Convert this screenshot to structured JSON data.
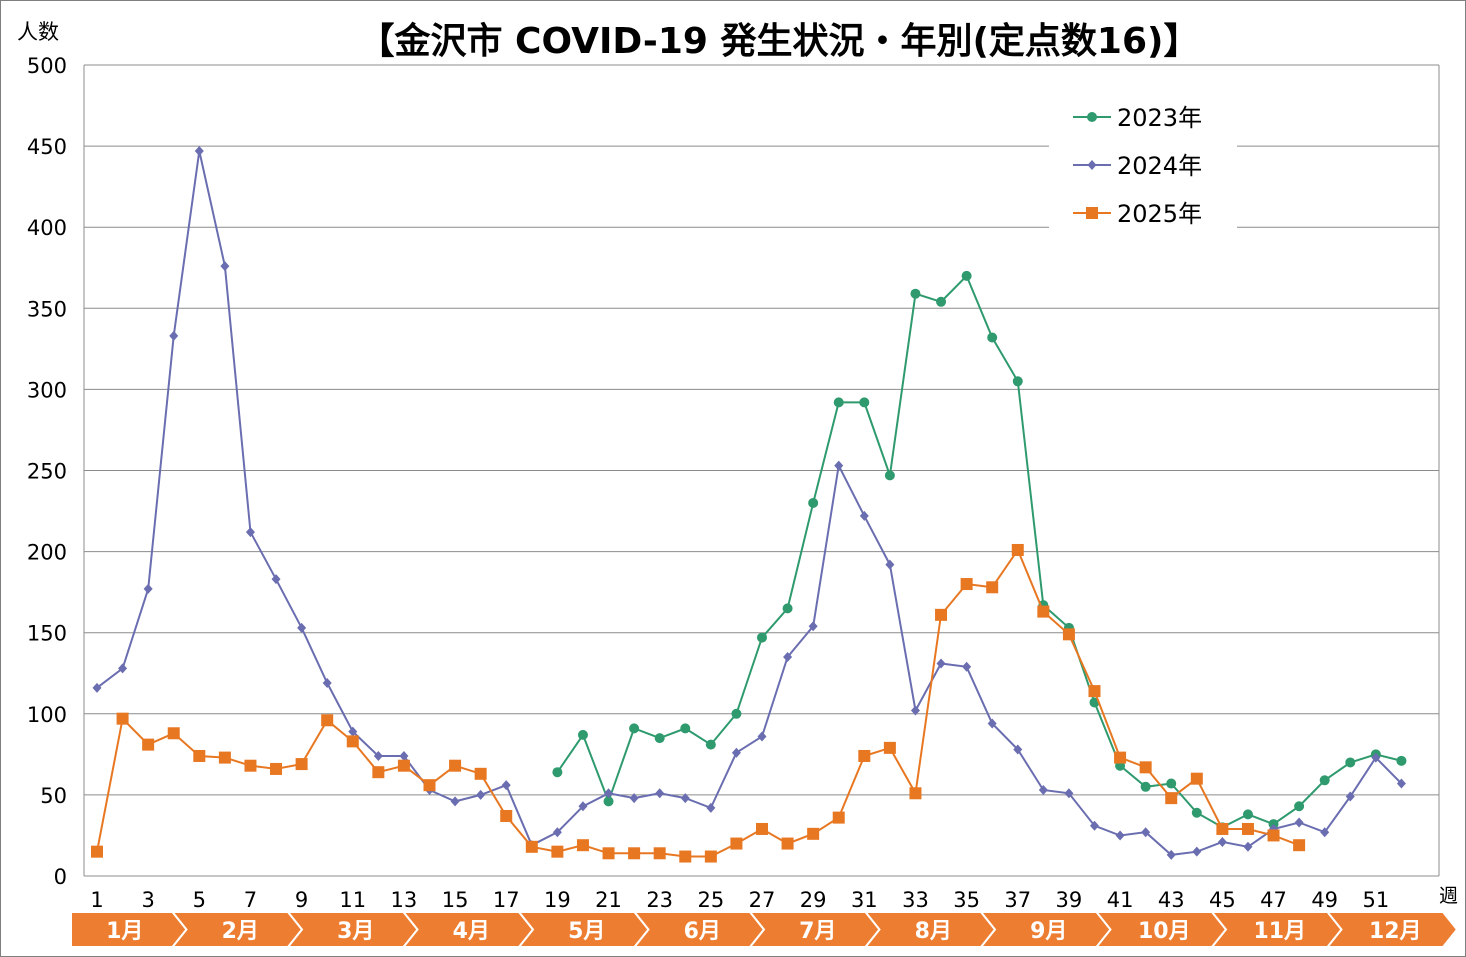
{
  "chart_data": {
    "type": "line",
    "title": "【金沢市 COVID-19 発生状況・年別(定点数16)】",
    "ylabel": "人数",
    "xlabel": "週",
    "ylim": [
      0,
      500
    ],
    "yticks": [
      0,
      50,
      100,
      150,
      200,
      250,
      300,
      350,
      400,
      450,
      500
    ],
    "xlim": [
      1,
      53
    ],
    "xtick_labels": [
      "1",
      "3",
      "5",
      "7",
      "9",
      "11",
      "13",
      "15",
      "17",
      "19",
      "21",
      "23",
      "25",
      "27",
      "29",
      "31",
      "33",
      "35",
      "37",
      "39",
      "41",
      "43",
      "45",
      "47",
      "49",
      "51"
    ],
    "grid": "horizontal",
    "legend_position": "top-right",
    "months": [
      "1月",
      "2月",
      "3月",
      "4月",
      "5月",
      "6月",
      "7月",
      "8月",
      "9月",
      "10月",
      "11月",
      "12月"
    ],
    "series": [
      {
        "name": "2023年",
        "color": "#2e9a6e",
        "marker": "circle",
        "x": [
          19,
          20,
          21,
          22,
          23,
          24,
          25,
          26,
          27,
          28,
          29,
          30,
          31,
          32,
          33,
          34,
          35,
          36,
          37,
          38,
          39,
          40,
          41,
          42,
          43,
          44,
          45,
          46,
          47,
          48,
          49,
          50,
          51,
          52
        ],
        "values": [
          64,
          87,
          46,
          91,
          85,
          91,
          81,
          100,
          147,
          165,
          230,
          292,
          292,
          247,
          359,
          354,
          370,
          332,
          305,
          167,
          153,
          107,
          68,
          55,
          57,
          39,
          30,
          38,
          32,
          43,
          59,
          70,
          75,
          71
        ]
      },
      {
        "name": "2024年",
        "color": "#6a6eb0",
        "marker": "diamond",
        "x": [
          1,
          2,
          3,
          4,
          5,
          6,
          7,
          8,
          9,
          10,
          11,
          12,
          13,
          14,
          15,
          16,
          17,
          18,
          19,
          20,
          21,
          22,
          23,
          24,
          25,
          26,
          27,
          28,
          29,
          30,
          31,
          32,
          33,
          34,
          35,
          36,
          37,
          38,
          39,
          40,
          41,
          42,
          43,
          44,
          45,
          46,
          47,
          48,
          49,
          50,
          51,
          52
        ],
        "values": [
          116,
          128,
          177,
          333,
          447,
          376,
          212,
          183,
          153,
          119,
          89,
          74,
          74,
          53,
          46,
          50,
          56,
          19,
          27,
          43,
          51,
          48,
          51,
          48,
          42,
          76,
          86,
          135,
          154,
          253,
          222,
          192,
          102,
          131,
          129,
          94,
          78,
          53,
          51,
          31,
          25,
          27,
          13,
          15,
          21,
          18,
          29,
          33,
          27,
          49,
          73,
          57
        ]
      },
      {
        "name": "2025年",
        "color": "#e87722",
        "marker": "square",
        "x": [
          1,
          2,
          3,
          4,
          5,
          6,
          7,
          8,
          9,
          10,
          11,
          12,
          13,
          14,
          15,
          16,
          17,
          18,
          19,
          20,
          21,
          22,
          23,
          24,
          25,
          26,
          27,
          28,
          29,
          30,
          31,
          32,
          33,
          34,
          35,
          36,
          37,
          38,
          39,
          40,
          41,
          42,
          43,
          44,
          45,
          46,
          47,
          48
        ],
        "values": [
          15,
          97,
          81,
          88,
          74,
          73,
          68,
          66,
          69,
          96,
          83,
          64,
          68,
          56,
          68,
          63,
          37,
          18,
          15,
          19,
          14,
          14,
          14,
          12,
          12,
          20,
          29,
          20,
          26,
          36,
          74,
          79,
          51,
          161,
          180,
          178,
          201,
          163,
          149,
          114,
          73,
          67,
          48,
          60,
          29,
          29,
          25,
          19
        ]
      }
    ]
  }
}
